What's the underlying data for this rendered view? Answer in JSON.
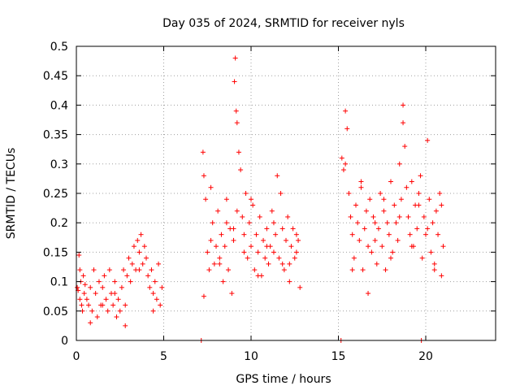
{
  "chart_data": {
    "type": "scatter",
    "title": "Day 035 of 2024, SRMTID for receiver nyls",
    "xlabel": "GPS time / hours",
    "ylabel": "SRMTID / TECUs",
    "xlim": [
      0,
      24
    ],
    "ylim": [
      0,
      0.5
    ],
    "xticks": [
      0,
      5,
      10,
      15,
      20
    ],
    "xtick_labels": [
      "0",
      "5",
      "10",
      "15",
      "20"
    ],
    "yticks": [
      0,
      0.05,
      0.1,
      0.15,
      0.2,
      0.25,
      0.3,
      0.35,
      0.4,
      0.45,
      0.5
    ],
    "ytick_labels": [
      "0",
      "0.05",
      "0.1",
      "0.15",
      "0.2",
      "0.25",
      "0.3",
      "0.35",
      "0.4",
      "0.45",
      "0.5"
    ],
    "grid": true,
    "legend": "none",
    "colors": {
      "marker": "#ff0000",
      "grid": "#a0a0a0",
      "axis": "#000000"
    },
    "series": [
      {
        "name": "SRMTID",
        "marker": "plus",
        "x": [
          0.05,
          0.1,
          0.15,
          0.2,
          0.25,
          0.3,
          0.35,
          0.4,
          0.45,
          0.5,
          0.6,
          0.7,
          0.8,
          0.9,
          1.0,
          1.1,
          1.2,
          1.3,
          1.4,
          1.5,
          1.6,
          1.7,
          1.8,
          1.9,
          2.0,
          2.1,
          2.2,
          2.3,
          2.4,
          2.5,
          2.6,
          2.7,
          2.8,
          2.9,
          3.0,
          3.1,
          3.2,
          3.3,
          3.4,
          3.5,
          3.6,
          3.7,
          3.8,
          3.9,
          4.0,
          4.1,
          4.2,
          4.3,
          4.4,
          4.5,
          4.6,
          4.7,
          4.8,
          4.9,
          0.2,
          0.8,
          1.5,
          2.2,
          2.8,
          3.6,
          4.4,
          7.25,
          7.3,
          7.4,
          7.5,
          7.6,
          7.7,
          7.8,
          7.9,
          8.0,
          8.1,
          8.2,
          8.3,
          8.4,
          8.5,
          8.6,
          8.7,
          8.8,
          8.9,
          9.0,
          9.05,
          9.1,
          9.15,
          9.2,
          9.3,
          9.4,
          9.5,
          9.6,
          9.7,
          9.8,
          9.9,
          10.0,
          10.1,
          10.2,
          10.3,
          10.4,
          10.5,
          10.6,
          10.7,
          10.8,
          10.9,
          11.0,
          11.1,
          11.2,
          11.3,
          11.4,
          11.5,
          11.6,
          11.7,
          11.8,
          11.9,
          12.0,
          12.1,
          12.2,
          12.3,
          12.4,
          12.5,
          12.6,
          12.7,
          12.8,
          7.3,
          7.7,
          8.2,
          8.6,
          9.0,
          9.2,
          9.6,
          10.0,
          10.4,
          10.9,
          11.3,
          11.8,
          12.2,
          12.6,
          15.2,
          15.3,
          15.4,
          15.5,
          15.6,
          15.7,
          15.8,
          15.9,
          16.0,
          16.1,
          16.2,
          16.3,
          16.4,
          16.5,
          16.6,
          16.7,
          16.8,
          16.9,
          17.0,
          17.1,
          17.2,
          17.3,
          17.4,
          17.5,
          17.6,
          17.7,
          17.8,
          17.9,
          18.0,
          18.1,
          18.2,
          18.3,
          18.4,
          18.5,
          18.6,
          18.7,
          18.8,
          18.9,
          19.0,
          19.1,
          19.2,
          19.3,
          19.4,
          19.5,
          19.6,
          19.7,
          19.8,
          19.9,
          20.0,
          20.1,
          20.2,
          20.3,
          20.4,
          20.5,
          20.6,
          20.7,
          20.8,
          20.9,
          21.0,
          15.4,
          15.8,
          16.3,
          16.7,
          17.1,
          17.6,
          18.0,
          18.5,
          18.7,
          19.2,
          19.6,
          20.1,
          20.5,
          20.9,
          7.15,
          15.15,
          19.75
        ],
        "y": [
          0.09,
          0.085,
          0.145,
          0.07,
          0.1,
          0.06,
          0.05,
          0.11,
          0.08,
          0.095,
          0.07,
          0.06,
          0.09,
          0.05,
          0.12,
          0.08,
          0.04,
          0.1,
          0.06,
          0.09,
          0.11,
          0.07,
          0.05,
          0.12,
          0.08,
          0.06,
          0.1,
          0.04,
          0.07,
          0.05,
          0.09,
          0.12,
          0.06,
          0.11,
          0.14,
          0.1,
          0.13,
          0.16,
          0.12,
          0.17,
          0.15,
          0.18,
          0.13,
          0.16,
          0.14,
          0.11,
          0.09,
          0.12,
          0.08,
          0.1,
          0.07,
          0.13,
          0.06,
          0.09,
          0.12,
          0.03,
          0.06,
          0.08,
          0.025,
          0.12,
          0.05,
          0.32,
          0.28,
          0.24,
          0.15,
          0.12,
          0.17,
          0.2,
          0.13,
          0.16,
          0.22,
          0.14,
          0.18,
          0.1,
          0.16,
          0.24,
          0.12,
          0.19,
          0.08,
          0.17,
          0.44,
          0.48,
          0.39,
          0.37,
          0.32,
          0.29,
          0.21,
          0.18,
          0.25,
          0.14,
          0.2,
          0.16,
          0.23,
          0.12,
          0.18,
          0.15,
          0.21,
          0.11,
          0.17,
          0.14,
          0.19,
          0.13,
          0.16,
          0.22,
          0.15,
          0.18,
          0.28,
          0.14,
          0.25,
          0.19,
          0.12,
          0.17,
          0.21,
          0.13,
          0.16,
          0.19,
          0.14,
          0.15,
          0.17,
          0.09,
          0.075,
          0.26,
          0.13,
          0.2,
          0.19,
          0.22,
          0.15,
          0.24,
          0.11,
          0.16,
          0.2,
          0.13,
          0.1,
          0.18,
          0.31,
          0.29,
          0.39,
          0.36,
          0.25,
          0.21,
          0.18,
          0.14,
          0.23,
          0.2,
          0.17,
          0.26,
          0.12,
          0.19,
          0.22,
          0.16,
          0.24,
          0.15,
          0.21,
          0.17,
          0.13,
          0.19,
          0.25,
          0.16,
          0.22,
          0.12,
          0.2,
          0.18,
          0.27,
          0.15,
          0.23,
          0.2,
          0.17,
          0.3,
          0.24,
          0.4,
          0.33,
          0.26,
          0.21,
          0.18,
          0.27,
          0.16,
          0.23,
          0.19,
          0.25,
          0.28,
          0.14,
          0.21,
          0.18,
          0.34,
          0.24,
          0.15,
          0.2,
          0.13,
          0.22,
          0.18,
          0.25,
          0.11,
          0.16,
          0.3,
          0.12,
          0.27,
          0.08,
          0.2,
          0.24,
          0.14,
          0.21,
          0.37,
          0.16,
          0.23,
          0.19,
          0.12,
          0.23,
          0.0,
          0.0,
          0.0
        ]
      }
    ]
  }
}
